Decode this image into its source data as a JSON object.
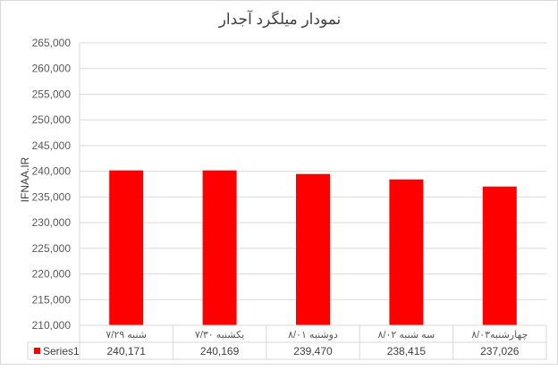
{
  "chart_data": {
    "type": "bar",
    "title": "نمودار میلگرد آجدار",
    "ylabel": "IFNAA.IR",
    "xlabel": "",
    "categories": [
      "شنبه ۷/۲۹",
      "یکشنبه ۷/۳۰",
      "دوشنبه ۸/۰۱",
      "سه شنبه ۸/۰۲",
      "چهارشنبه۸/۰۳"
    ],
    "series": [
      {
        "name": "Series1",
        "values": [
          240171,
          240169,
          239470,
          238415,
          237026
        ],
        "color": "#ff0000"
      }
    ],
    "data_table_labels": [
      "240,171",
      "240,169",
      "239,470",
      "238,415",
      "237,026"
    ],
    "ylim": [
      210000,
      265000
    ],
    "ytick_step": 5000,
    "yticks": [
      "210,000",
      "215,000",
      "220,000",
      "225,000",
      "230,000",
      "235,000",
      "240,000",
      "245,000",
      "250,000",
      "255,000",
      "260,000",
      "265,000"
    ],
    "grid": true,
    "legend": "data-table"
  }
}
